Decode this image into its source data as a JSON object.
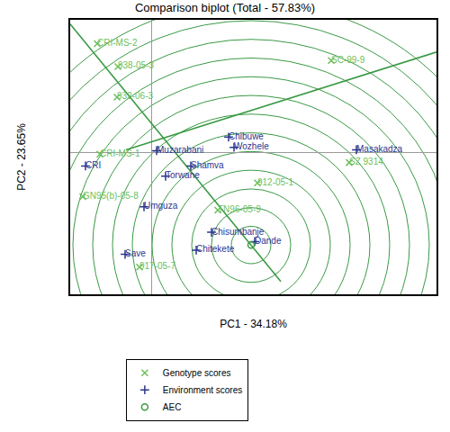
{
  "chart_data": {
    "type": "scatter",
    "title": "Comparison biplot (Total - 57.83%)",
    "x_label": "PC1 - 34.18%",
    "y_label": "PC2 - 23.65%",
    "xlim": [
      -2.25,
      7.925
    ],
    "ylim": [
      -4.175,
      3.9
    ],
    "tick_labels": false,
    "grid": false,
    "legend": "bottom",
    "series": [
      {
        "name": "Genotype scores",
        "color": "#6cbf5a",
        "marker": "x",
        "labels": [
          "CRI-MS-2",
          "938-05-3",
          "SC-99-9",
          "932-06-3",
          "CRI-MS-1",
          "SZ 9314",
          "912-05-1",
          "GN95(b)-05-8",
          "TN96-05-9",
          "917-05-7"
        ],
        "x": [
          -1.5,
          -0.925,
          5.0,
          -0.95,
          -1.425,
          5.5,
          2.95,
          -1.9,
          1.85,
          -0.325
        ],
        "y": [
          3.2,
          2.525,
          2.7,
          1.625,
          -0.05,
          -0.3,
          -0.9,
          -1.3,
          -1.7,
          -3.375
        ]
      },
      {
        "name": "Environment scores",
        "color": "#2b3590",
        "marker": "cross",
        "labels": [
          "Chibuwe",
          "Wozhele",
          "Masakadza",
          "Muzarabani",
          "Shamva",
          "Torwane",
          "CRI",
          "Umguza",
          "Chisumbanje",
          "Dande",
          "Chitekete",
          "Save"
        ],
        "x": [
          2.15,
          2.3,
          5.7,
          0.15,
          1.1,
          0.4,
          -1.825,
          -0.2,
          1.675,
          2.875,
          1.25,
          -0.725
        ],
        "y": [
          0.45,
          0.15,
          0.075,
          0.05,
          -0.4,
          -0.7,
          -0.4,
          -1.6,
          -2.35,
          -2.625,
          -2.875,
          -3.0
        ]
      },
      {
        "name": "AEC",
        "color": "#3a9a45",
        "marker": "circle-open",
        "x": [
          2.775
        ],
        "y": [
          -2.725
        ]
      }
    ],
    "circle_radii": [
      0.55,
      1.1,
      1.65,
      2.2,
      2.75,
      3.3,
      3.85,
      4.4,
      4.95,
      5.5,
      6.05,
      6.6,
      7.15
    ],
    "lines": [
      {
        "color": "#3a9a45",
        "x": [
          -2.25,
          3.6
        ],
        "y": [
          3.775,
          -3.8
        ]
      },
      {
        "color": "#3a9a45",
        "x": [
          -0.7,
          7.925
        ],
        "y": [
          0.075,
          2.95
        ]
      }
    ]
  }
}
